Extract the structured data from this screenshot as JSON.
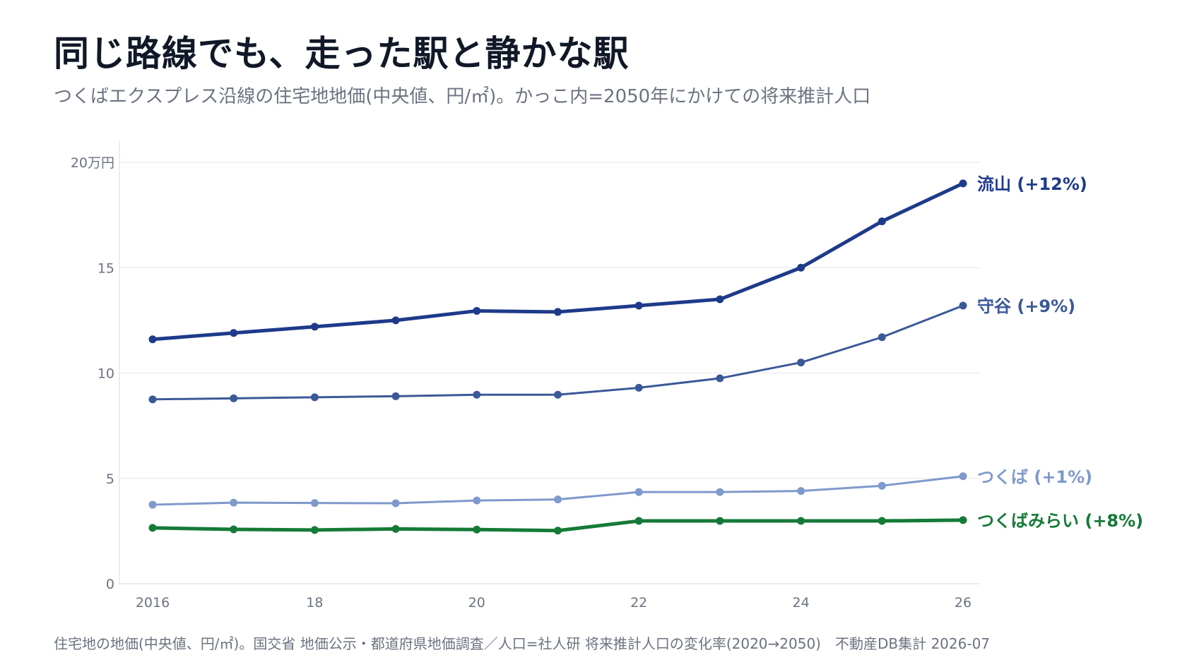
{
  "title": "同じ路線でも、走った駅と静かな駅",
  "subtitle": "つくばエクスプレス沿線の住宅地地価(中央値、円/㎡)。かっこ内=2050年にかけての将来推計人口",
  "footnote": "住宅地の地価(中央値、円/㎡)。国交省 地価公示・都道府県地価調査／人口=社人研 将来推計人口の変化率(2020→2050)　不動産DB集計 2026-07",
  "chart_data": {
    "type": "line",
    "x": [
      2016,
      2017,
      2018,
      2019,
      2020,
      2021,
      2022,
      2023,
      2024,
      2025,
      2026
    ],
    "x_ticks": [
      {
        "value": 2016,
        "label": "2016"
      },
      {
        "value": 2018,
        "label": "18"
      },
      {
        "value": 2020,
        "label": "20"
      },
      {
        "value": 2022,
        "label": "22"
      },
      {
        "value": 2024,
        "label": "24"
      },
      {
        "value": 2026,
        "label": "26"
      }
    ],
    "y_ticks": [
      {
        "value": 0,
        "label": "0"
      },
      {
        "value": 5,
        "label": "5"
      },
      {
        "value": 10,
        "label": "10"
      },
      {
        "value": 15,
        "label": "15"
      },
      {
        "value": 20,
        "label": "20万円"
      }
    ],
    "ylim": [
      0,
      20
    ],
    "xlim": [
      2016,
      2026
    ],
    "grid": true,
    "legend": "end-of-line labels",
    "series": [
      {
        "name": "流山",
        "label": "流山 (+12%)",
        "color": "#1e3a8a",
        "values": [
          11.6,
          11.9,
          12.2,
          12.5,
          12.95,
          12.9,
          13.2,
          13.5,
          15.0,
          17.2,
          19.0
        ]
      },
      {
        "name": "守谷",
        "label": "守谷 (+9%)",
        "color": "#3b5998",
        "values": [
          8.75,
          8.8,
          8.85,
          8.9,
          8.97,
          8.97,
          9.3,
          9.75,
          10.5,
          11.7,
          13.2
        ]
      },
      {
        "name": "つくば",
        "label": "つくば (+1%)",
        "color": "#7f99cc",
        "values": [
          3.75,
          3.85,
          3.83,
          3.82,
          3.95,
          4.0,
          4.35,
          4.35,
          4.4,
          4.65,
          5.1
        ]
      },
      {
        "name": "つくばみらい",
        "label": "つくばみらい (+8%)",
        "color": "#157a37",
        "values": [
          2.65,
          2.58,
          2.55,
          2.6,
          2.57,
          2.52,
          2.98,
          2.98,
          2.98,
          2.98,
          3.02
        ]
      }
    ]
  }
}
